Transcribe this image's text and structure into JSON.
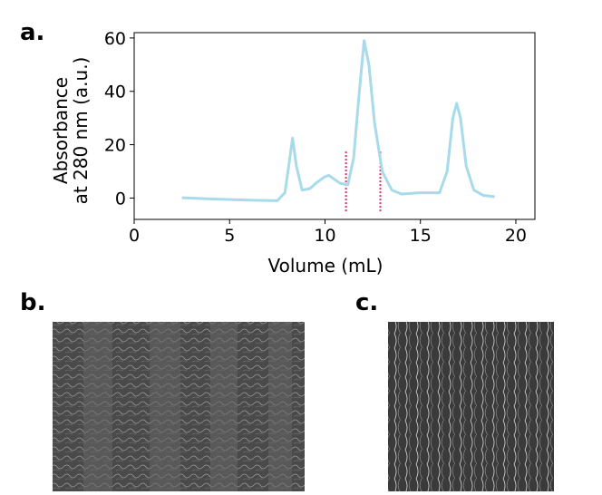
{
  "chart_data": {
    "type": "line",
    "panel_label": "a.",
    "xlabel": "Volume (mL)",
    "ylabel": [
      "Absorbance",
      "at 280 nm (a.u.)"
    ],
    "x": [
      2.5,
      4,
      6,
      7.5,
      7.9,
      8.1,
      8.3,
      8.5,
      8.8,
      9.2,
      9.6,
      10.0,
      10.2,
      10.5,
      10.8,
      11.2,
      11.5,
      11.8,
      12.05,
      12.3,
      12.6,
      13.0,
      13.5,
      14.0,
      15.0,
      16.0,
      16.4,
      16.7,
      16.9,
      17.1,
      17.4,
      17.8,
      18.3,
      18.9
    ],
    "series": [
      {
        "color": "#a7dbea",
        "values": [
          0.1,
          -0.3,
          -0.8,
          -1,
          2,
          12,
          22.5,
          12,
          3,
          3.5,
          6,
          8,
          8.5,
          7,
          5.5,
          5,
          15,
          40,
          59,
          50,
          28,
          10,
          3,
          1.5,
          2,
          2,
          10,
          30,
          35.5,
          30,
          12,
          3,
          1,
          0.5
        ]
      }
    ],
    "fraction_bounds": [
      11.1,
      12.9
    ],
    "fraction_ylim": [
      -5,
      18
    ],
    "fraction_color": "#e0306a",
    "xlim": [
      0,
      21
    ],
    "ylim": [
      -8,
      62
    ],
    "xticks": [
      0,
      5,
      10,
      15,
      20
    ],
    "yticks": [
      0,
      20,
      40,
      60
    ]
  },
  "panels": [
    {
      "label": "b."
    },
    {
      "label": "c."
    }
  ]
}
